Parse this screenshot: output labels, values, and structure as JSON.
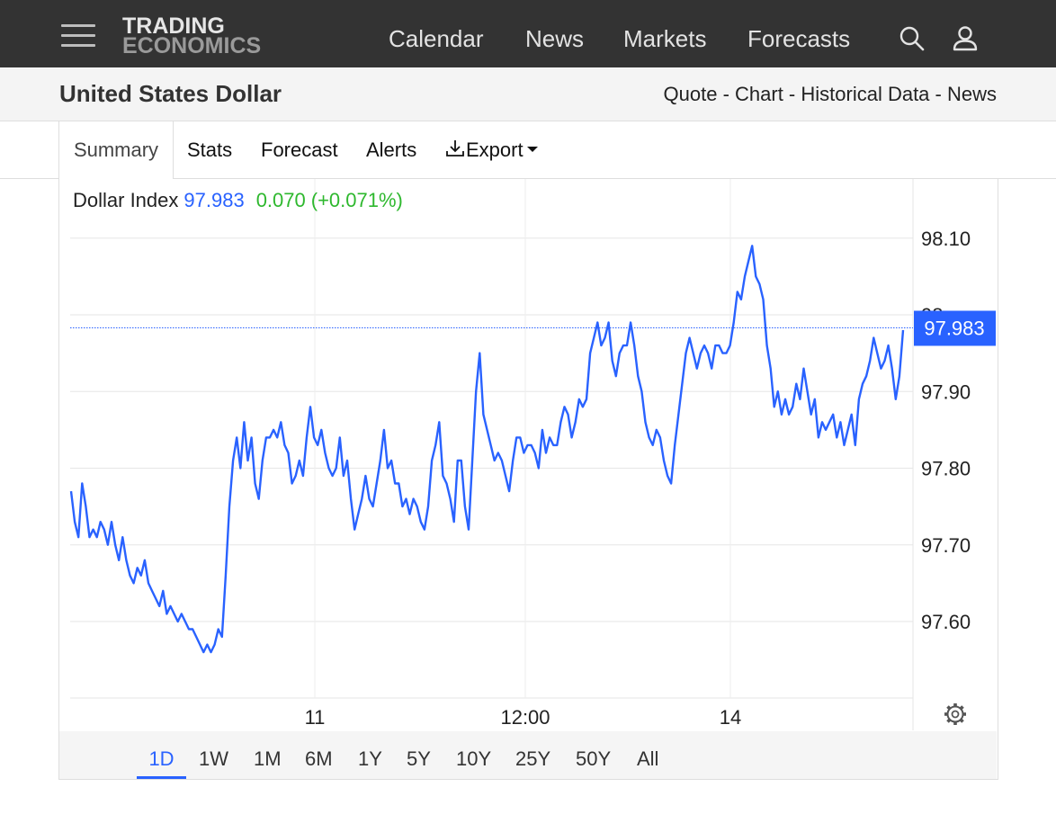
{
  "topbar": {
    "logo_line1": "TRADING",
    "logo_line2": "ECONOMICS",
    "nav": [
      "Calendar",
      "News",
      "Markets",
      "Forecasts"
    ],
    "icons": [
      "menu-icon",
      "search-icon",
      "user-icon"
    ]
  },
  "header": {
    "title": "United States Dollar",
    "breadcrumbs": [
      "Quote",
      "Chart",
      "Historical Data",
      "News"
    ],
    "separator": " - "
  },
  "tabs": [
    "Summary",
    "Stats",
    "Forecast",
    "Alerts",
    "Export"
  ],
  "active_tab": "Summary",
  "quote": {
    "name": "Dollar Index",
    "price": "97.983",
    "change": "0.070",
    "change_pct": "(+0.071%)"
  },
  "ranges": [
    "1D",
    "1W",
    "1M",
    "6M",
    "1Y",
    "5Y",
    "10Y",
    "25Y",
    "50Y",
    "All"
  ],
  "active_range": "1D",
  "colors": {
    "line": "#2962ff",
    "positive": "#2eb82e",
    "topbar": "#333333"
  },
  "chart_data": {
    "type": "line",
    "series": [
      {
        "name": "Dollar Index",
        "values": [
          97.77,
          97.73,
          97.71,
          97.78,
          97.75,
          97.71,
          97.72,
          97.71,
          97.73,
          97.72,
          97.7,
          97.73,
          97.7,
          97.68,
          97.71,
          97.68,
          97.66,
          97.65,
          97.67,
          97.66,
          97.68,
          97.65,
          97.64,
          97.63,
          97.62,
          97.64,
          97.61,
          97.62,
          97.61,
          97.6,
          97.61,
          97.6,
          97.59,
          97.59,
          97.58,
          97.57,
          97.56,
          97.57,
          97.56,
          97.57,
          97.59,
          97.58,
          97.66,
          97.75,
          97.81,
          97.84,
          97.8,
          97.86,
          97.81,
          97.84,
          97.78,
          97.76,
          97.81,
          97.84,
          97.84,
          97.85,
          97.84,
          97.86,
          97.83,
          97.82,
          97.78,
          97.79,
          97.81,
          97.79,
          97.84,
          97.88,
          97.84,
          97.83,
          97.85,
          97.82,
          97.8,
          97.79,
          97.8,
          97.84,
          97.79,
          97.81,
          97.76,
          97.72,
          97.74,
          97.76,
          97.79,
          97.76,
          97.75,
          97.78,
          97.81,
          97.85,
          97.8,
          97.81,
          97.78,
          97.78,
          97.75,
          97.76,
          97.74,
          97.76,
          97.75,
          97.73,
          97.72,
          97.75,
          97.81,
          97.83,
          97.86,
          97.79,
          97.78,
          97.76,
          97.73,
          97.81,
          97.81,
          97.75,
          97.72,
          97.81,
          97.9,
          97.95,
          97.87,
          97.85,
          97.83,
          97.81,
          97.82,
          97.81,
          97.79,
          97.77,
          97.81,
          97.84,
          97.84,
          97.82,
          97.83,
          97.83,
          97.82,
          97.8,
          97.85,
          97.82,
          97.84,
          97.83,
          97.83,
          97.86,
          97.88,
          97.87,
          97.84,
          97.86,
          97.89,
          97.88,
          97.89,
          97.95,
          97.97,
          97.99,
          97.96,
          97.97,
          97.99,
          97.94,
          97.92,
          97.95,
          97.96,
          97.96,
          97.99,
          97.96,
          97.92,
          97.9,
          97.86,
          97.84,
          97.83,
          97.85,
          97.84,
          97.81,
          97.79,
          97.78,
          97.83,
          97.87,
          97.91,
          97.95,
          97.97,
          97.95,
          97.93,
          97.95,
          97.96,
          97.95,
          97.93,
          97.96,
          97.96,
          97.95,
          97.95,
          97.96,
          97.99,
          98.03,
          98.02,
          98.05,
          98.07,
          98.09,
          98.05,
          98.04,
          98.02,
          97.96,
          97.93,
          97.88,
          97.9,
          97.87,
          97.89,
          97.87,
          97.88,
          97.91,
          97.89,
          97.93,
          97.9,
          97.87,
          97.89,
          97.84,
          97.86,
          97.85,
          97.86,
          97.87,
          97.84,
          97.86,
          97.83,
          97.85,
          97.87,
          97.83,
          97.89,
          97.91,
          97.92,
          97.94,
          97.97,
          97.95,
          97.93,
          97.94,
          97.96,
          97.93,
          97.89,
          97.92,
          97.98
        ]
      }
    ],
    "x_tick_labels": [
      "11",
      "12:00",
      "14"
    ],
    "y_tick_labels": [
      "97.60",
      "97.70",
      "97.80",
      "97.90",
      "98",
      "98.10"
    ],
    "ylim": [
      97.5,
      98.15
    ],
    "current_value_label": "97.983",
    "current_value": 97.983,
    "grid": true
  }
}
